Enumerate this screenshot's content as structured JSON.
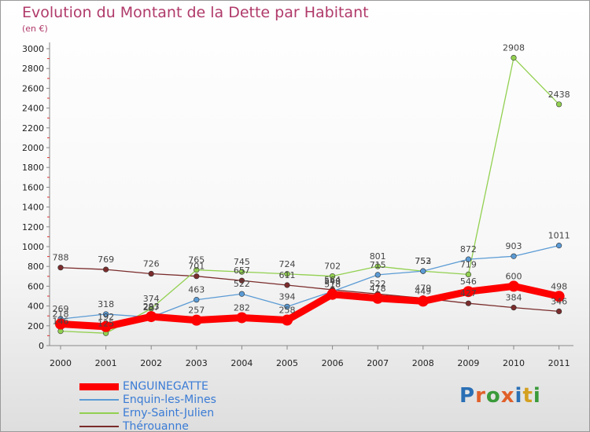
{
  "title": "Evolution du Montant de la Dette par Habitant",
  "subtitle": "(en €)",
  "logo": {
    "text": "Proxiti",
    "letter_colors": [
      "#2a6fb5",
      "#e0602a",
      "#3a9a3a",
      "#e0602a",
      "#2a6fb5",
      "#d4a020",
      "#3a9a3a"
    ]
  },
  "chart_data": {
    "type": "line",
    "title": "Evolution du Montant de la Dette par Habitant",
    "subtitle": "(en €)",
    "xlabel": "",
    "ylabel": "",
    "x": [
      "2000",
      "2001",
      "2002",
      "2003",
      "2004",
      "2005",
      "2006",
      "2007",
      "2008",
      "2009",
      "2010",
      "2011"
    ],
    "ylim": [
      0,
      3000
    ],
    "yticks": [
      0,
      200,
      400,
      600,
      800,
      1000,
      1200,
      1400,
      1600,
      1800,
      2000,
      2200,
      2400,
      2600,
      2800,
      3000
    ],
    "grid": false,
    "legend": "bottom-left",
    "series": [
      {
        "name": "ENGUINEGATTE",
        "color": "#ff0000",
        "values": [
          218,
          192,
          293,
          257,
          282,
          258,
          518,
          478,
          449,
          546,
          600,
          498
        ]
      },
      {
        "name": "Enquin-les-Mines",
        "color": "#5b9bd5",
        "values": [
          269,
          318,
          287,
          463,
          522,
          394,
          548,
          715,
          753,
          872,
          903,
          1011
        ]
      },
      {
        "name": "Erny-Saint-Julien",
        "color": "#92d050",
        "values": [
          146,
          125,
          374,
          765,
          745,
          724,
          702,
          801,
          752,
          719,
          2908,
          2438
        ]
      },
      {
        "name": "Thérouanne",
        "color": "#7b2c2c",
        "values": [
          788,
          769,
          726,
          701,
          657,
          611,
          564,
          522,
          479,
          427,
          384,
          346
        ]
      }
    ],
    "data_labels": [
      {
        "series": 3,
        "values": [
          "788",
          "769",
          "726",
          "701",
          "657",
          "611",
          "564",
          "522",
          "479",
          "427",
          "384",
          "346"
        ]
      },
      {
        "series": 2,
        "values": [
          "146",
          "125",
          "374",
          "765",
          "745",
          "724",
          "702",
          "801",
          "752",
          "719",
          "2908",
          "2438"
        ]
      },
      {
        "series": 1,
        "values": [
          "269",
          "318",
          "287",
          "463",
          "522",
          "394",
          "548",
          "715",
          "753",
          "872",
          "903",
          "1011"
        ]
      },
      {
        "series": 0,
        "values": [
          "218",
          "192",
          "293",
          "257",
          "282",
          "258",
          "518",
          "478",
          "449",
          "546",
          "600",
          "498"
        ]
      }
    ]
  }
}
